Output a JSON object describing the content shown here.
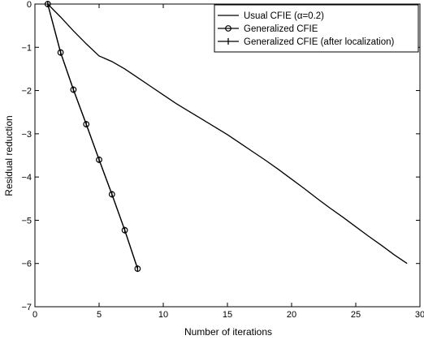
{
  "chart_data": {
    "type": "line",
    "title": "",
    "xlabel": "Number of iterations",
    "ylabel": "Residual reduction",
    "xlim": [
      0,
      30
    ],
    "ylim": [
      -7,
      0
    ],
    "xticks": [
      0,
      5,
      10,
      15,
      20,
      25,
      30
    ],
    "yticks": [
      0,
      -1,
      -2,
      -3,
      -4,
      -5,
      -6,
      -7
    ],
    "xtick_labels": [
      "0",
      "5",
      "10",
      "15",
      "20",
      "25",
      "30"
    ],
    "ytick_labels": [
      "0",
      "−1",
      "−2",
      "−3",
      "−4",
      "−5",
      "−6",
      "−7"
    ],
    "grid": false,
    "legend_position": "top-right",
    "series": [
      {
        "name": "Usual CFIE (α=0.2)",
        "marker": "none",
        "x": [
          1,
          2,
          3,
          4,
          5,
          6,
          7,
          8,
          9,
          10,
          11,
          12,
          13,
          14,
          15,
          16,
          17,
          18,
          19,
          20,
          21,
          22,
          23,
          24,
          25,
          26,
          27,
          28,
          29
        ],
        "y": [
          0,
          -0.3,
          -0.62,
          -0.92,
          -1.2,
          -1.33,
          -1.5,
          -1.7,
          -1.9,
          -2.1,
          -2.3,
          -2.48,
          -2.66,
          -2.84,
          -3.02,
          -3.22,
          -3.42,
          -3.62,
          -3.83,
          -4.05,
          -4.27,
          -4.5,
          -4.72,
          -4.93,
          -5.15,
          -5.37,
          -5.58,
          -5.8,
          -6.0
        ]
      },
      {
        "name": "Generalized CFIE",
        "marker": "circle",
        "x": [
          1,
          2,
          3,
          4,
          5,
          6,
          7,
          8
        ],
        "y": [
          0,
          -1.12,
          -1.98,
          -2.78,
          -3.6,
          -4.4,
          -5.23,
          -6.12
        ]
      },
      {
        "name": "Generalized CFIE (after localization)",
        "marker": "plus",
        "x": [
          1,
          2,
          3,
          4,
          5,
          6,
          7,
          8
        ],
        "y": [
          0,
          -1.12,
          -1.98,
          -2.78,
          -3.6,
          -4.4,
          -5.23,
          -6.12
        ]
      }
    ]
  }
}
